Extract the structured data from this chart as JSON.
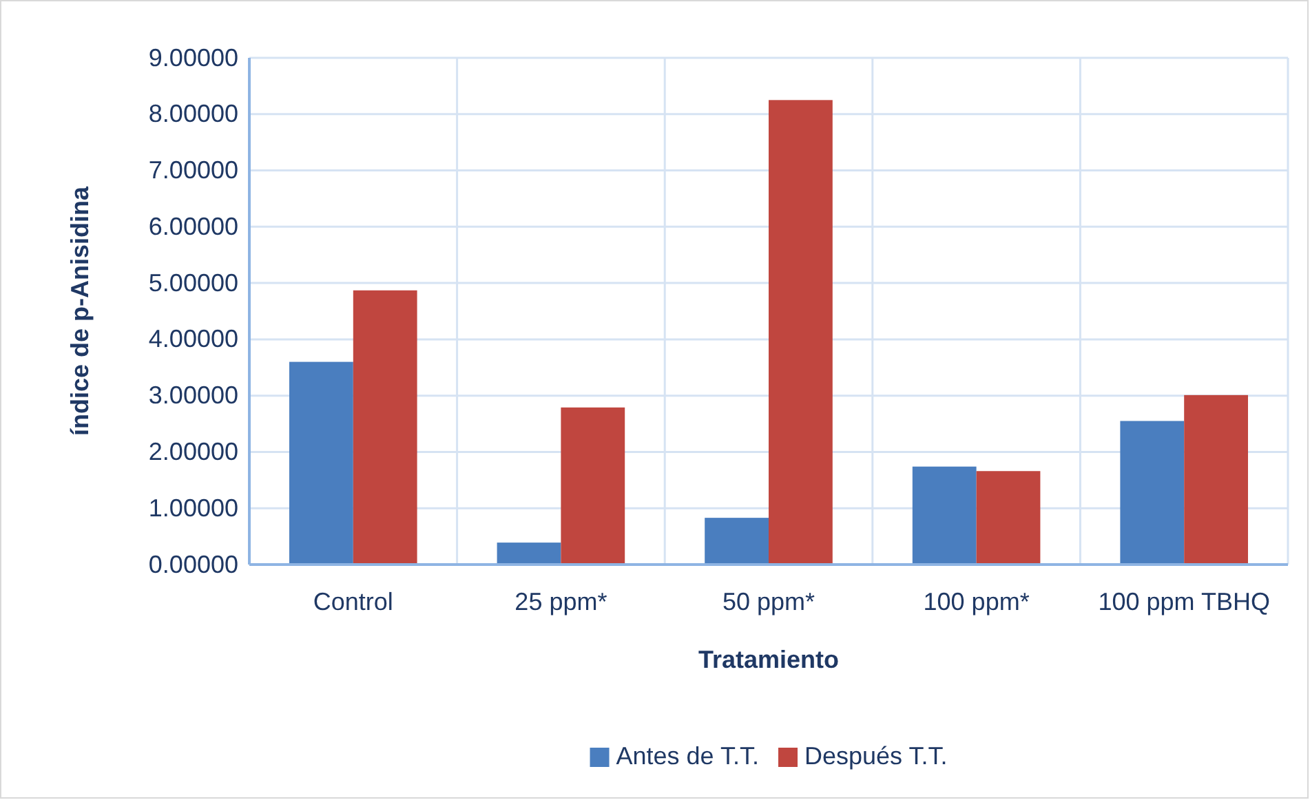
{
  "chart_data": {
    "type": "bar",
    "xlabel": "Tratamiento",
    "ylabel": "índice de p-Anisidina",
    "categories": [
      "Control",
      "25 ppm*",
      "50 ppm*",
      "100 ppm*",
      "100 ppm TBHQ"
    ],
    "series": [
      {
        "name": "Antes de T.T.",
        "color": "#4a7ebf",
        "values": [
          3.6,
          0.39,
          0.83,
          1.74,
          2.55
        ]
      },
      {
        "name": "Después T.T.",
        "color": "#c0463f",
        "values": [
          4.87,
          2.79,
          8.25,
          1.66,
          3.01
        ]
      }
    ],
    "ylim": [
      0,
      9
    ],
    "yticks": [
      {
        "value": 0,
        "label": "0.00000"
      },
      {
        "value": 1,
        "label": "1.00000"
      },
      {
        "value": 2,
        "label": "2.00000"
      },
      {
        "value": 3,
        "label": "3.00000"
      },
      {
        "value": 4,
        "label": "4.00000"
      },
      {
        "value": 5,
        "label": "5.00000"
      },
      {
        "value": 6,
        "label": "6.00000"
      },
      {
        "value": 7,
        "label": "7.00000"
      },
      {
        "value": 8,
        "label": "8.00000"
      },
      {
        "value": 9,
        "label": "9.00000"
      }
    ],
    "grid": true,
    "legend": "bottom"
  }
}
